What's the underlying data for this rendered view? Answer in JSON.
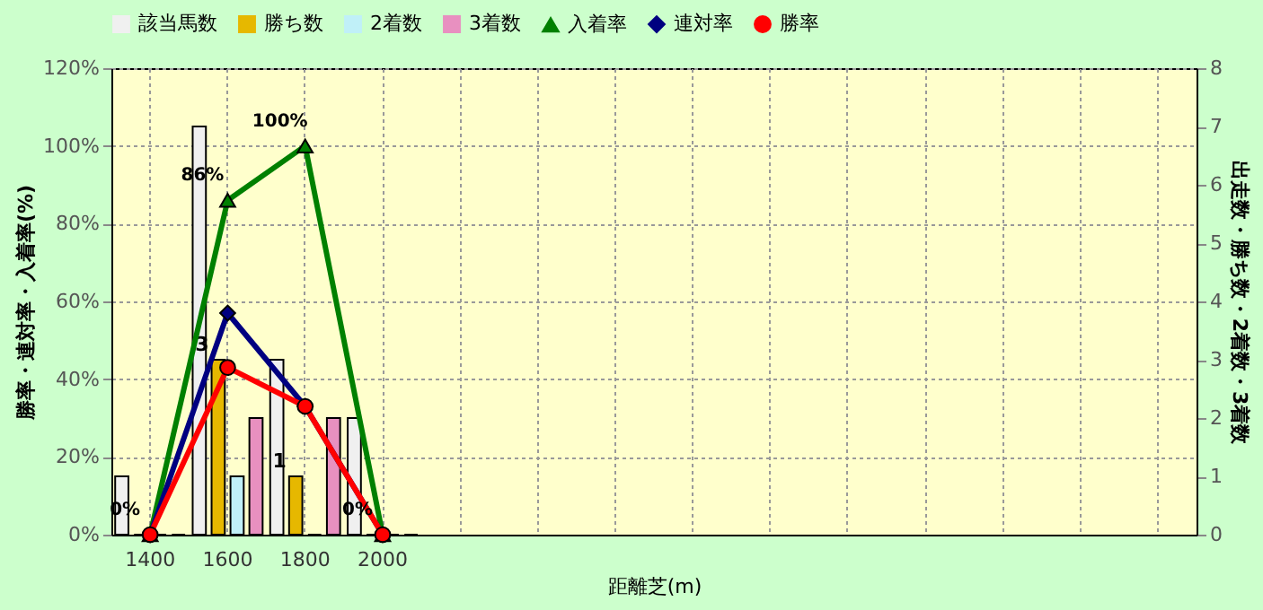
{
  "chart_data": {
    "type": "bar",
    "xlabel": "距離芝(m)",
    "ylabel": "勝率・連対率・入着率(%)",
    "y2label": "出走数・勝ち数・2着数・3着数",
    "categories": [
      "1400",
      "1600",
      "1800",
      "2000",
      null,
      null,
      null,
      null,
      null,
      null,
      null,
      null,
      null,
      null
    ],
    "series": [
      {
        "name": "該当馬数",
        "axis": "y2",
        "color": "#f0f0f0",
        "values": [
          1,
          7,
          3,
          2,
          null,
          null,
          null,
          null,
          null,
          null,
          null,
          null,
          null,
          null
        ]
      },
      {
        "name": "勝ち数",
        "axis": "y2",
        "color": "#e6b800",
        "values": [
          0,
          3,
          1,
          0,
          null,
          null,
          null,
          null,
          null,
          null,
          null,
          null,
          null,
          null
        ],
        "value_labels": [
          null,
          "3",
          "1",
          null,
          null,
          null,
          null,
          null,
          null,
          null,
          null,
          null,
          null,
          null
        ]
      },
      {
        "name": "2着数",
        "axis": "y2",
        "color": "#c0f0f8",
        "values": [
          0,
          1,
          0,
          0,
          null,
          null,
          null,
          null,
          null,
          null,
          null,
          null,
          null,
          null
        ]
      },
      {
        "name": "3着数",
        "axis": "y2",
        "color": "#e890c0",
        "values": [
          0,
          2,
          2,
          0,
          null,
          null,
          null,
          null,
          null,
          null,
          null,
          null,
          null,
          null
        ]
      },
      {
        "name": "入着率",
        "type": "line",
        "color": "#008000",
        "marker": "triangle",
        "values": [
          0,
          86,
          100,
          0,
          null,
          null,
          null,
          null,
          null,
          null,
          null,
          null,
          null,
          null
        ],
        "value_labels": [
          "0%",
          "86%",
          "100%",
          "0%",
          null,
          null,
          null,
          null,
          null,
          null,
          null,
          null,
          null,
          null
        ]
      },
      {
        "name": "連対率",
        "type": "line",
        "color": "#000080",
        "marker": "diamond",
        "values": [
          0,
          57,
          33,
          0,
          null,
          null,
          null,
          null,
          null,
          null,
          null,
          null,
          null,
          null
        ]
      },
      {
        "name": "勝率",
        "type": "line",
        "color": "#ff0000",
        "marker": "circle",
        "values": [
          0,
          43,
          33,
          0,
          null,
          null,
          null,
          null,
          null,
          null,
          null,
          null,
          null,
          null
        ]
      }
    ],
    "ylim": [
      0,
      120
    ],
    "yticks": [
      {
        "value": 0,
        "label": "0%"
      },
      {
        "value": 20,
        "label": "20%"
      },
      {
        "value": 40,
        "label": "40%"
      },
      {
        "value": 60,
        "label": "60%"
      },
      {
        "value": 80,
        "label": "80%"
      },
      {
        "value": 100,
        "label": "100%"
      },
      {
        "value": 120,
        "label": "120%"
      }
    ],
    "y2lim": [
      0,
      8
    ],
    "y2ticks": [
      0,
      1,
      2,
      3,
      4,
      5,
      6,
      7,
      8
    ],
    "grid": true,
    "legend": "top"
  }
}
